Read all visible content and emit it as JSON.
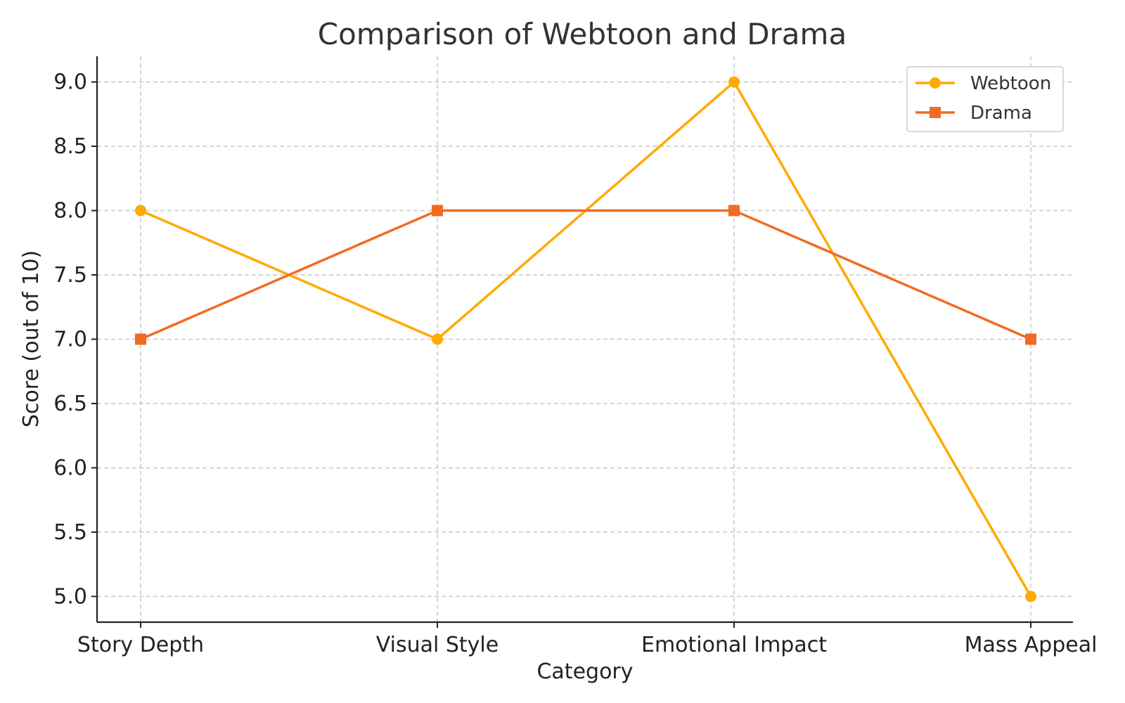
{
  "chart_data": {
    "type": "line",
    "title": "Comparison of Webtoon and Drama",
    "xlabel": "Category",
    "ylabel": "Score (out of 10)",
    "categories": [
      "Story Depth",
      "Visual Style",
      "Emotional Impact",
      "Mass Appeal"
    ],
    "ylim": [
      4.8,
      9.2
    ],
    "yticks": [
      "5.0",
      "5.5",
      "6.0",
      "6.5",
      "7.0",
      "7.5",
      "8.0",
      "8.5",
      "9.0"
    ],
    "grid": true,
    "legend_position": "top-right",
    "series": [
      {
        "name": "Webtoon",
        "values": [
          8,
          7,
          9,
          5
        ],
        "color": "#FFAA00",
        "marker": "circle"
      },
      {
        "name": "Drama",
        "values": [
          7,
          8,
          8,
          7
        ],
        "color": "#F26B22",
        "marker": "square"
      }
    ]
  }
}
